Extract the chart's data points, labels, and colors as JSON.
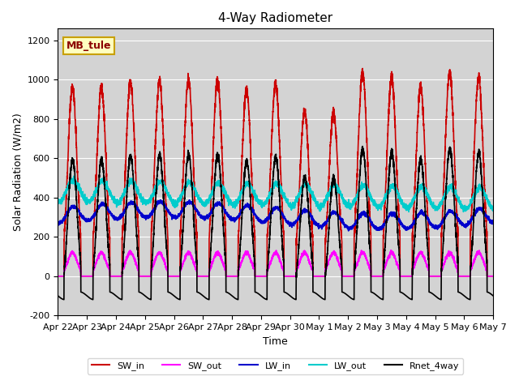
{
  "title": "4-Way Radiometer",
  "xlabel": "Time",
  "ylabel": "Solar Radiation (W/m2)",
  "ylim": [
    -200,
    1260
  ],
  "xlim_days": 15,
  "annotation_text": "MB_tule",
  "annotation_color": "#c8a000",
  "background_color": "#d3d3d3",
  "series": {
    "SW_in": {
      "color": "#cc0000",
      "lw": 1.2
    },
    "SW_out": {
      "color": "#ff00ff",
      "lw": 1.2
    },
    "LW_in": {
      "color": "#0000cc",
      "lw": 1.2
    },
    "LW_out": {
      "color": "#00cccc",
      "lw": 1.2
    },
    "Rnet_4way": {
      "color": "#000000",
      "lw": 1.2
    }
  },
  "x_tick_labels": [
    "Apr 22",
    "Apr 23",
    "Apr 24",
    "Apr 25",
    "Apr 26",
    "Apr 27",
    "Apr 28",
    "Apr 29",
    "Apr 30",
    "May 1",
    "May 2",
    "May 3",
    "May 4",
    "May 5",
    "May 6",
    "May 7"
  ],
  "yticks": [
    -200,
    0,
    200,
    400,
    600,
    800,
    1000,
    1200
  ],
  "grid_color": "#ffffff",
  "num_days": 15
}
